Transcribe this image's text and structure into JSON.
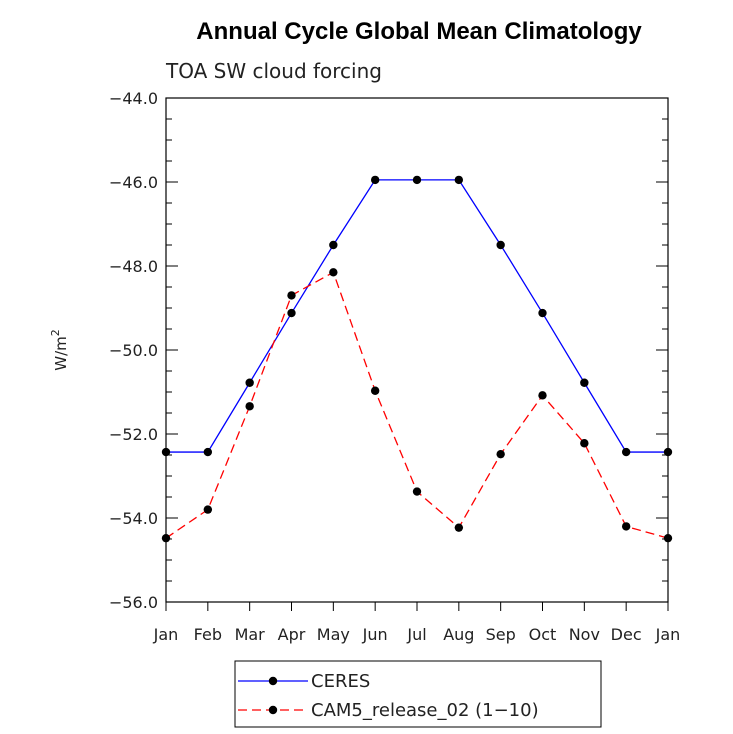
{
  "chart_data": {
    "type": "line",
    "title": "Annual Cycle Global Mean Climatology",
    "subtitle": "TOA SW cloud forcing",
    "ylabel": "W/m",
    "ylabel_sup": "2",
    "xlabel": "",
    "categories": [
      "Jan",
      "Feb",
      "Mar",
      "Apr",
      "May",
      "Jun",
      "Jul",
      "Aug",
      "Sep",
      "Oct",
      "Nov",
      "Dec",
      "Jan"
    ],
    "ylim": [
      -56.0,
      -44.0
    ],
    "yticks": [
      -56.0,
      -54.0,
      -52.0,
      -50.0,
      -48.0,
      -46.0,
      -44.0
    ],
    "ytick_labels": [
      "−56.0",
      "−54.0",
      "−52.0",
      "−50.0",
      "−48.0",
      "−46.0",
      "−44.0"
    ],
    "grid": false,
    "legend_position": "bottom-center",
    "series": [
      {
        "name": "CERES",
        "color": "#0000ff",
        "dash": "solid",
        "values": [
          -52.43,
          -52.43,
          -50.78,
          -49.12,
          -47.5,
          -45.95,
          -45.95,
          -45.95,
          -47.5,
          -49.12,
          -50.78,
          -52.43,
          -52.43
        ]
      },
      {
        "name": "CAM5_release_02 (1−10)",
        "color": "#ff0000",
        "dash": "dashed",
        "values": [
          -54.48,
          -53.8,
          -51.34,
          -48.7,
          -48.15,
          -50.97,
          -53.37,
          -54.23,
          -52.48,
          -51.08,
          -52.22,
          -54.2,
          -54.48
        ]
      }
    ]
  }
}
